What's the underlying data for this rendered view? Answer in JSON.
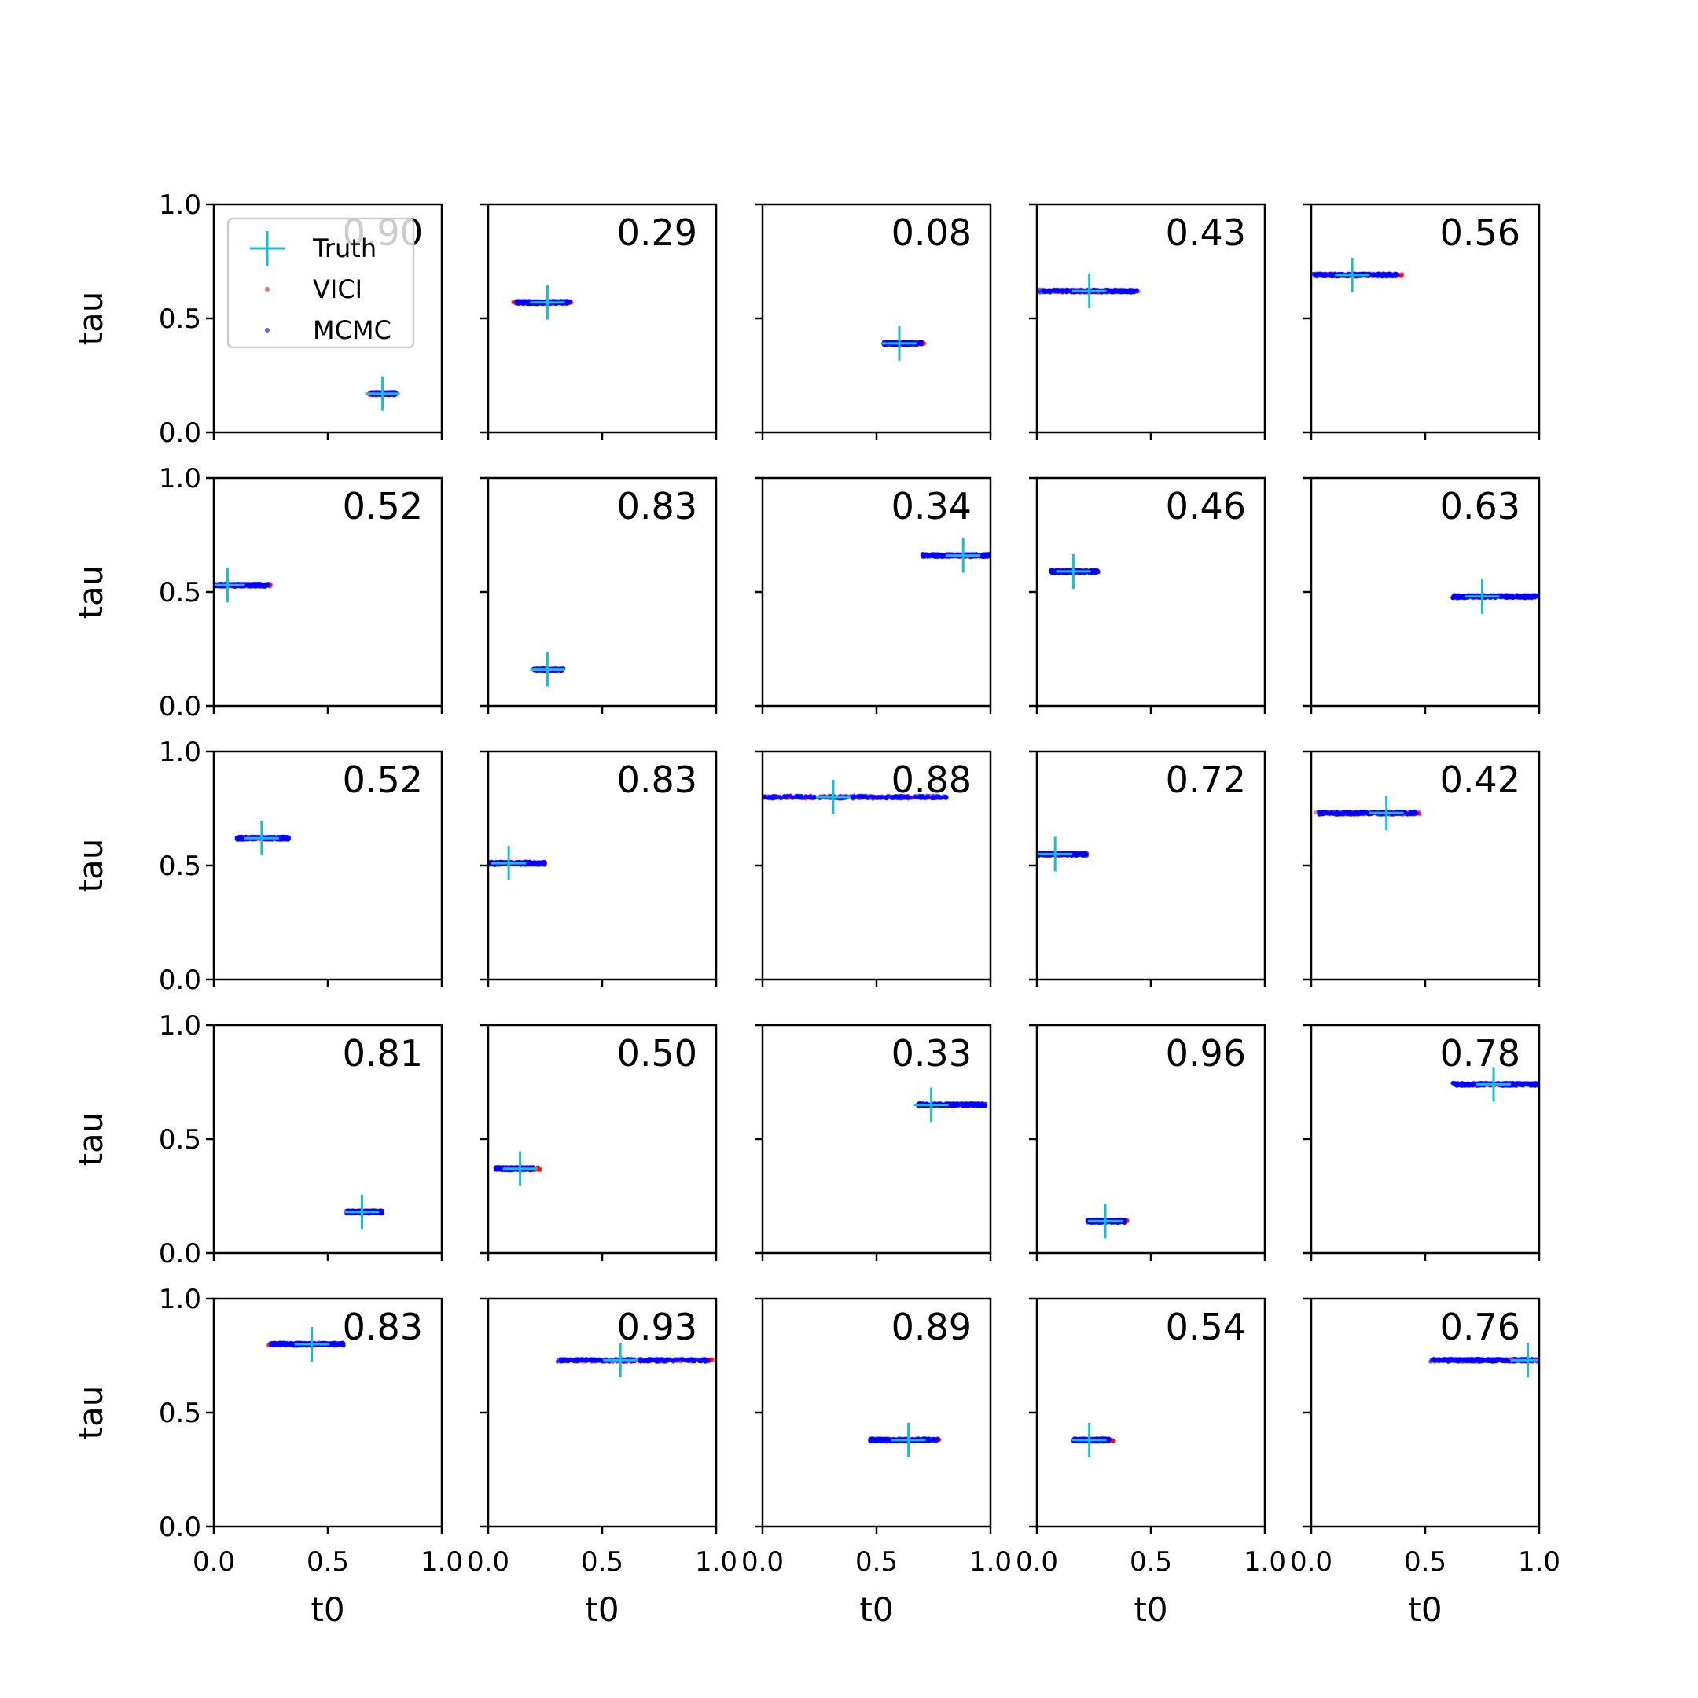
{
  "chart_data": {
    "type": "scatter",
    "layout": {
      "rows": 5,
      "cols": 5
    },
    "xlabel": "t0",
    "ylabel": "tau",
    "xlim": [
      0.0,
      1.0
    ],
    "ylim": [
      0.0,
      1.0
    ],
    "xticks": [
      "0.0",
      "0.5",
      "1.0"
    ],
    "yticks": [
      "0.0",
      "0.5",
      "1.0"
    ],
    "grid": false,
    "legend": {
      "placement": "top-left of first panel",
      "entries": [
        {
          "name": "Truth",
          "marker": "cross",
          "color": "#17becf"
        },
        {
          "name": "VICI",
          "marker": "dot",
          "color": "#ff0000"
        },
        {
          "name": "MCMC",
          "marker": "dot",
          "color": "#0000ff"
        }
      ]
    },
    "panels": [
      {
        "score": "0.90",
        "truth": [
          0.74,
          0.17
        ],
        "vici_range": [
          0.68,
          0.8
        ],
        "mcmc_range": [
          0.69,
          0.8
        ]
      },
      {
        "score": "0.29",
        "truth": [
          0.26,
          0.57
        ],
        "vici_range": [
          0.11,
          0.37
        ],
        "mcmc_range": [
          0.12,
          0.36
        ]
      },
      {
        "score": "0.08",
        "truth": [
          0.6,
          0.39
        ],
        "vici_range": [
          0.53,
          0.71
        ],
        "mcmc_range": [
          0.53,
          0.7
        ]
      },
      {
        "score": "0.43",
        "truth": [
          0.23,
          0.62
        ],
        "vici_range": [
          0.01,
          0.45
        ],
        "mcmc_range": [
          0.01,
          0.44
        ]
      },
      {
        "score": "0.56",
        "truth": [
          0.18,
          0.69
        ],
        "vici_range": [
          0.01,
          0.4
        ],
        "mcmc_range": [
          0.01,
          0.38
        ]
      },
      {
        "score": "0.52",
        "truth": [
          0.06,
          0.53
        ],
        "vici_range": [
          0.0,
          0.25
        ],
        "mcmc_range": [
          0.0,
          0.24
        ]
      },
      {
        "score": "0.83",
        "truth": [
          0.26,
          0.16
        ],
        "vici_range": [
          0.2,
          0.33
        ],
        "mcmc_range": [
          0.2,
          0.33
        ]
      },
      {
        "score": "0.34",
        "truth": [
          0.88,
          0.66
        ],
        "vici_range": [
          0.7,
          1.0
        ],
        "mcmc_range": [
          0.7,
          1.0
        ]
      },
      {
        "score": "0.46",
        "truth": [
          0.16,
          0.59
        ],
        "vici_range": [
          0.06,
          0.27
        ],
        "mcmc_range": [
          0.06,
          0.27
        ]
      },
      {
        "score": "0.63",
        "truth": [
          0.75,
          0.48
        ],
        "vici_range": [
          0.62,
          0.95
        ],
        "mcmc_range": [
          0.62,
          1.0
        ]
      },
      {
        "score": "0.52",
        "truth": [
          0.21,
          0.62
        ],
        "vici_range": [
          0.1,
          0.33
        ],
        "mcmc_range": [
          0.1,
          0.33
        ]
      },
      {
        "score": "0.83",
        "truth": [
          0.09,
          0.51
        ],
        "vici_range": [
          0.0,
          0.25
        ],
        "mcmc_range": [
          0.0,
          0.25
        ]
      },
      {
        "score": "0.88",
        "truth": [
          0.31,
          0.8
        ],
        "vici_range": [
          0.0,
          0.75
        ],
        "mcmc_range": [
          0.0,
          0.81
        ]
      },
      {
        "score": "0.72",
        "truth": [
          0.08,
          0.55
        ],
        "vici_range": [
          0.0,
          0.22
        ],
        "mcmc_range": [
          0.0,
          0.22
        ]
      },
      {
        "score": "0.42",
        "truth": [
          0.33,
          0.73
        ],
        "vici_range": [
          0.02,
          0.48
        ],
        "mcmc_range": [
          0.03,
          0.47
        ]
      },
      {
        "score": "0.81",
        "truth": [
          0.65,
          0.18
        ],
        "vici_range": [
          0.58,
          0.74
        ],
        "mcmc_range": [
          0.58,
          0.74
        ]
      },
      {
        "score": "0.50",
        "truth": [
          0.14,
          0.37
        ],
        "vici_range": [
          0.03,
          0.23
        ],
        "mcmc_range": [
          0.03,
          0.2
        ]
      },
      {
        "score": "0.33",
        "truth": [
          0.74,
          0.65
        ],
        "vici_range": [
          0.68,
          0.95
        ],
        "mcmc_range": [
          0.68,
          0.98
        ]
      },
      {
        "score": "0.96",
        "truth": [
          0.3,
          0.14
        ],
        "vici_range": [
          0.22,
          0.4
        ],
        "mcmc_range": [
          0.22,
          0.39
        ]
      },
      {
        "score": "0.78",
        "truth": [
          0.8,
          0.74
        ],
        "vici_range": [
          0.62,
          1.0
        ],
        "mcmc_range": [
          0.62,
          1.0
        ]
      },
      {
        "score": "0.83",
        "truth": [
          0.43,
          0.8
        ],
        "vici_range": [
          0.23,
          0.57
        ],
        "mcmc_range": [
          0.25,
          0.57
        ]
      },
      {
        "score": "0.93",
        "truth": [
          0.58,
          0.73
        ],
        "vici_range": [
          0.32,
          0.99
        ],
        "mcmc_range": [
          0.3,
          0.97
        ]
      },
      {
        "score": "0.89",
        "truth": [
          0.64,
          0.38
        ],
        "vici_range": [
          0.47,
          0.78
        ],
        "mcmc_range": [
          0.47,
          0.77
        ]
      },
      {
        "score": "0.54",
        "truth": [
          0.23,
          0.38
        ],
        "vici_range": [
          0.16,
          0.34
        ],
        "mcmc_range": [
          0.16,
          0.32
        ]
      },
      {
        "score": "0.76",
        "truth": [
          0.95,
          0.73
        ],
        "vici_range": [
          0.55,
          1.0
        ],
        "mcmc_range": [
          0.52,
          1.0
        ]
      }
    ]
  }
}
